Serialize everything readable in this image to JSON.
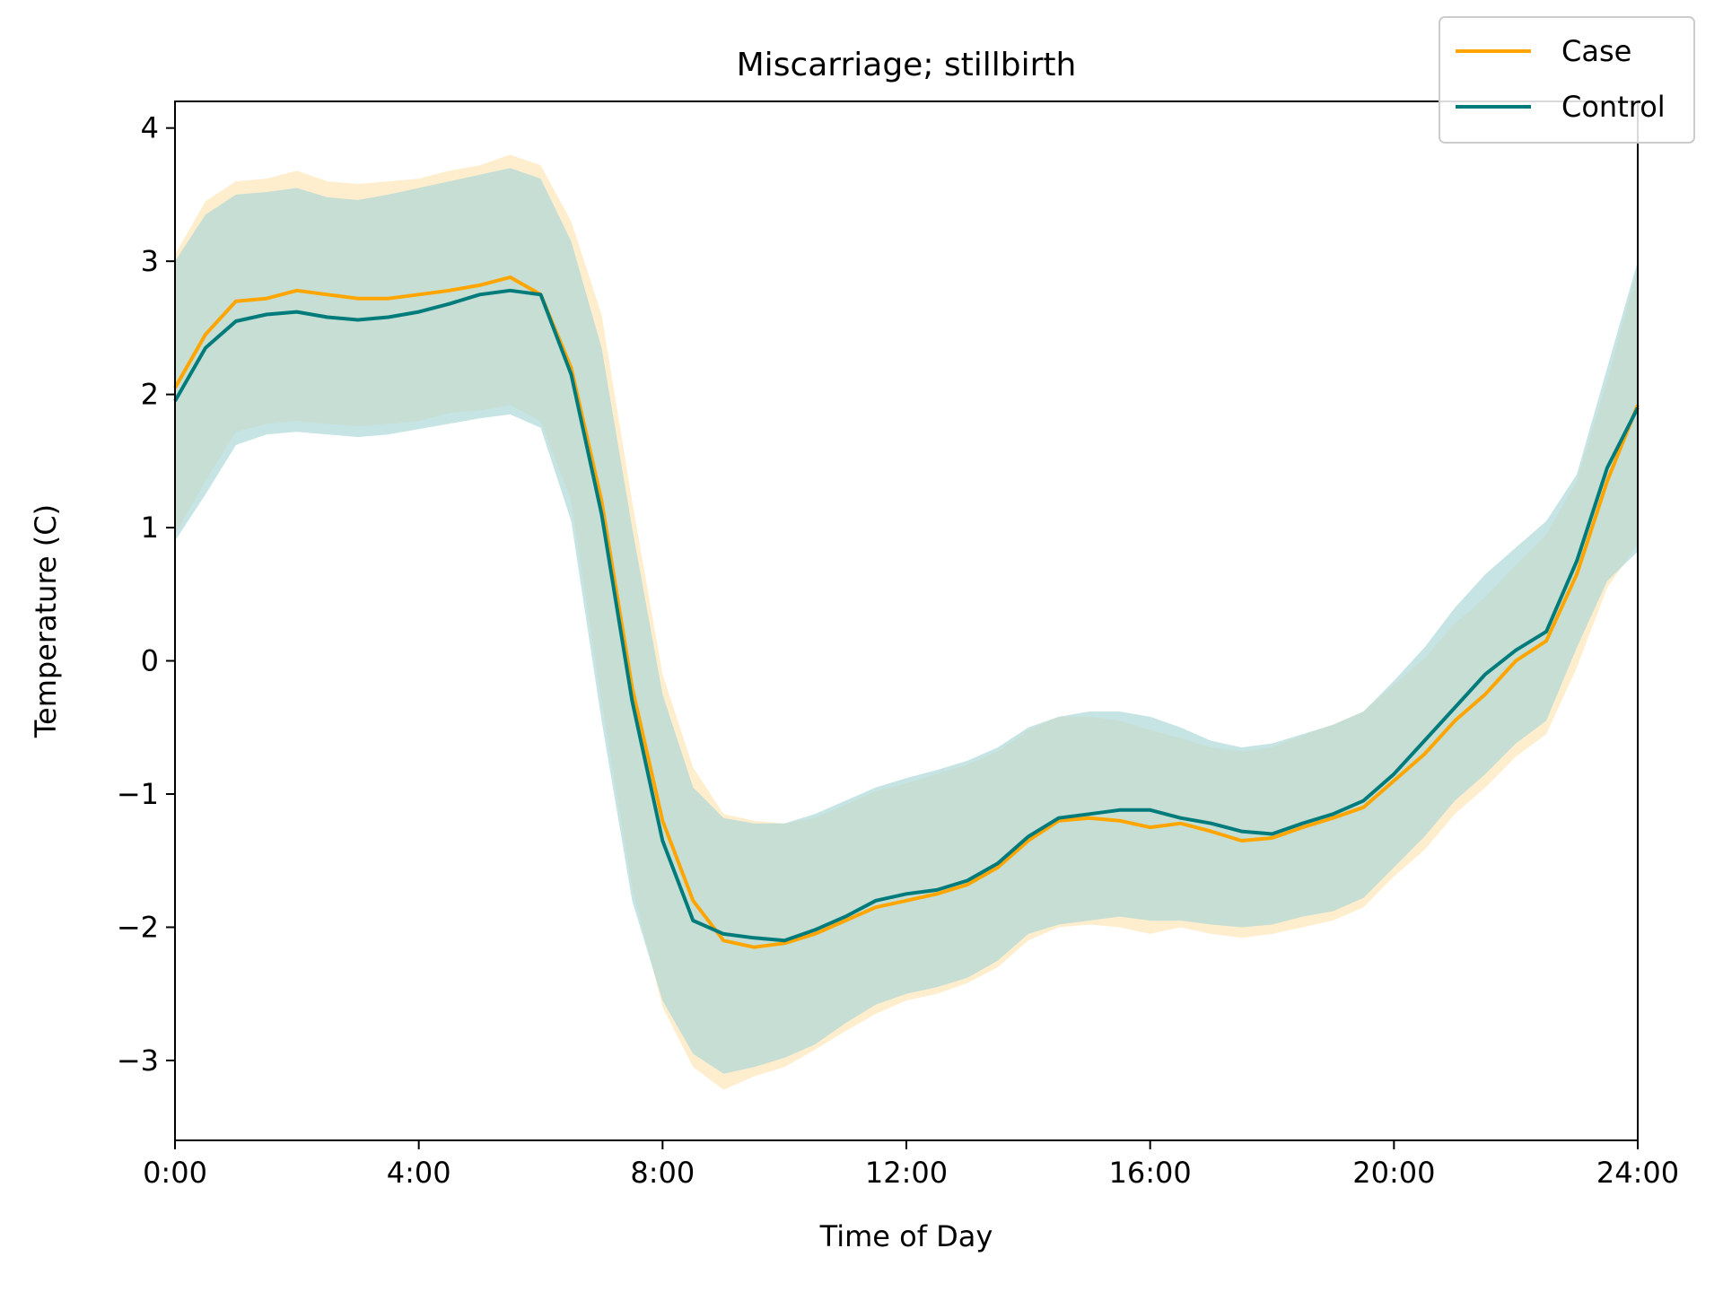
{
  "chart_data": {
    "type": "line",
    "title": "Miscarriage; stillbirth",
    "xlabel": "Time of Day",
    "ylabel": "Temperature (C)",
    "xlim": [
      0,
      24
    ],
    "ylim": [
      -3.6,
      4.2
    ],
    "x_ticks": [
      {
        "value": 0,
        "label": "0:00"
      },
      {
        "value": 4,
        "label": "4:00"
      },
      {
        "value": 8,
        "label": "8:00"
      },
      {
        "value": 12,
        "label": "12:00"
      },
      {
        "value": 16,
        "label": "16:00"
      },
      {
        "value": 20,
        "label": "20:00"
      },
      {
        "value": 24,
        "label": "24:00"
      }
    ],
    "y_ticks": [
      {
        "value": -3,
        "label": "−3"
      },
      {
        "value": -2,
        "label": "−2"
      },
      {
        "value": -1,
        "label": "−1"
      },
      {
        "value": 0,
        "label": "0"
      },
      {
        "value": 1,
        "label": "1"
      },
      {
        "value": 2,
        "label": "2"
      },
      {
        "value": 3,
        "label": "3"
      },
      {
        "value": 4,
        "label": "4"
      }
    ],
    "grid": false,
    "legend_position": "top-right",
    "x": [
      0,
      0.5,
      1,
      1.5,
      2,
      2.5,
      3,
      3.5,
      4,
      4.5,
      5,
      5.5,
      6,
      6.5,
      7,
      7.5,
      8,
      8.5,
      9,
      9.5,
      10,
      10.5,
      11,
      11.5,
      12,
      12.5,
      13,
      13.5,
      14,
      14.5,
      15,
      15.5,
      16,
      16.5,
      17,
      17.5,
      18,
      18.5,
      19,
      19.5,
      20,
      20.5,
      21,
      21.5,
      22,
      22.5,
      23,
      23.5,
      24
    ],
    "series": [
      {
        "name": "Case",
        "color": "#ffa500",
        "band_color": "#ffe5b3",
        "values": [
          2.05,
          2.45,
          2.7,
          2.72,
          2.78,
          2.75,
          2.72,
          2.72,
          2.75,
          2.78,
          2.82,
          2.88,
          2.75,
          2.2,
          1.2,
          -0.2,
          -1.2,
          -1.8,
          -2.1,
          -2.15,
          -2.12,
          -2.05,
          -1.95,
          -1.85,
          -1.8,
          -1.75,
          -1.68,
          -1.55,
          -1.35,
          -1.2,
          -1.18,
          -1.2,
          -1.25,
          -1.22,
          -1.28,
          -1.35,
          -1.33,
          -1.25,
          -1.18,
          -1.1,
          -0.9,
          -0.7,
          -0.45,
          -0.25,
          0.0,
          0.15,
          0.65,
          1.35,
          1.92
        ],
        "upper": [
          3.05,
          3.45,
          3.6,
          3.62,
          3.68,
          3.6,
          3.58,
          3.6,
          3.62,
          3.68,
          3.72,
          3.8,
          3.72,
          3.3,
          2.6,
          1.2,
          -0.1,
          -0.8,
          -1.15,
          -1.2,
          -1.22,
          -1.18,
          -1.08,
          -0.98,
          -0.92,
          -0.85,
          -0.78,
          -0.68,
          -0.52,
          -0.42,
          -0.42,
          -0.45,
          -0.52,
          -0.58,
          -0.65,
          -0.68,
          -0.65,
          -0.56,
          -0.48,
          -0.38,
          -0.18,
          0.02,
          0.28,
          0.48,
          0.72,
          0.95,
          1.35,
          2.1,
          2.95
        ],
        "lower": [
          0.95,
          1.35,
          1.72,
          1.78,
          1.8,
          1.78,
          1.76,
          1.78,
          1.8,
          1.86,
          1.88,
          1.92,
          1.8,
          1.2,
          -0.3,
          -1.7,
          -2.6,
          -3.05,
          -3.22,
          -3.12,
          -3.05,
          -2.92,
          -2.78,
          -2.65,
          -2.55,
          -2.5,
          -2.42,
          -2.3,
          -2.1,
          -2.0,
          -1.98,
          -2.0,
          -2.05,
          -2.0,
          -2.05,
          -2.08,
          -2.05,
          -2.0,
          -1.95,
          -1.85,
          -1.62,
          -1.42,
          -1.15,
          -0.95,
          -0.72,
          -0.55,
          -0.05,
          0.55,
          0.88
        ]
      },
      {
        "name": "Control",
        "color": "#007b7b",
        "band_color": "#a8d5d5",
        "values": [
          1.95,
          2.35,
          2.55,
          2.6,
          2.62,
          2.58,
          2.56,
          2.58,
          2.62,
          2.68,
          2.75,
          2.78,
          2.75,
          2.15,
          1.1,
          -0.3,
          -1.35,
          -1.95,
          -2.05,
          -2.08,
          -2.1,
          -2.02,
          -1.92,
          -1.8,
          -1.75,
          -1.72,
          -1.65,
          -1.52,
          -1.32,
          -1.18,
          -1.15,
          -1.12,
          -1.12,
          -1.18,
          -1.22,
          -1.28,
          -1.3,
          -1.22,
          -1.15,
          -1.05,
          -0.85,
          -0.6,
          -0.35,
          -0.1,
          0.08,
          0.22,
          0.75,
          1.45,
          1.9
        ],
        "upper": [
          3.0,
          3.35,
          3.5,
          3.52,
          3.55,
          3.48,
          3.46,
          3.5,
          3.55,
          3.6,
          3.65,
          3.7,
          3.62,
          3.15,
          2.35,
          1.0,
          -0.25,
          -0.95,
          -1.18,
          -1.22,
          -1.22,
          -1.15,
          -1.05,
          -0.95,
          -0.88,
          -0.82,
          -0.75,
          -0.65,
          -0.5,
          -0.42,
          -0.38,
          -0.38,
          -0.42,
          -0.5,
          -0.6,
          -0.65,
          -0.62,
          -0.55,
          -0.48,
          -0.38,
          -0.15,
          0.1,
          0.4,
          0.65,
          0.85,
          1.05,
          1.4,
          2.2,
          3.0
        ],
        "lower": [
          0.9,
          1.25,
          1.62,
          1.7,
          1.72,
          1.7,
          1.68,
          1.7,
          1.74,
          1.78,
          1.82,
          1.85,
          1.75,
          1.05,
          -0.45,
          -1.8,
          -2.55,
          -2.95,
          -3.1,
          -3.05,
          -2.98,
          -2.88,
          -2.72,
          -2.58,
          -2.5,
          -2.45,
          -2.38,
          -2.25,
          -2.05,
          -1.98,
          -1.95,
          -1.92,
          -1.95,
          -1.95,
          -1.98,
          -2.0,
          -1.98,
          -1.92,
          -1.88,
          -1.78,
          -1.55,
          -1.32,
          -1.05,
          -0.85,
          -0.62,
          -0.45,
          0.1,
          0.6,
          0.82
        ]
      }
    ]
  }
}
